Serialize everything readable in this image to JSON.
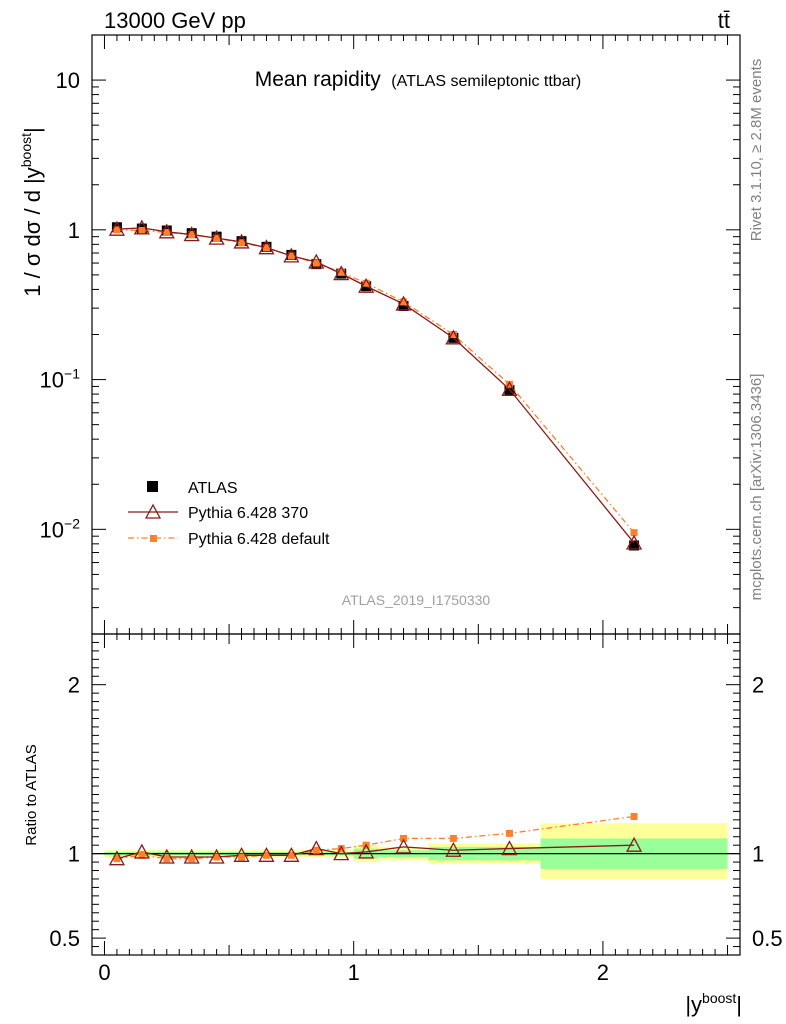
{
  "header": {
    "energy_label": "13000 GeV pp",
    "process_label": "tt̄"
  },
  "main_plot": {
    "title": "Mean rapidity",
    "subtitle": "(ATLAS semileptonic ttbar)",
    "ylabel": "1 / σ dσ / d |y",
    "ylabel_sup": "boost",
    "ylabel_close": "|",
    "y_ticks": [
      {
        "value": 10,
        "base": "10",
        "exp": ""
      },
      {
        "value": 1,
        "base": "1",
        "exp": ""
      },
      {
        "value": 0.1,
        "base": "10",
        "exp": "−1"
      },
      {
        "value": 0.01,
        "base": "10",
        "exp": "−2"
      }
    ],
    "analysis_label": "ATLAS_2019_I1750330"
  },
  "side_labels": {
    "rivet": "Rivet 3.1.10, ≥ 2.8M events",
    "mcplots": "mcplots.cern.ch [arXiv:1306.3436]"
  },
  "legend": {
    "entries": [
      "ATLAS",
      "Pythia 6.428 370",
      "Pythia 6.428 default"
    ]
  },
  "ratio_plot": {
    "ylabel": "Ratio to ATLAS",
    "y_ticks": [
      {
        "value": 2,
        "label": "2"
      },
      {
        "value": 1,
        "label": "1"
      },
      {
        "value": 0.5,
        "label": "0.5"
      }
    ]
  },
  "x_axis": {
    "label_base": "|y",
    "label_sup": "boost",
    "label_close": "|",
    "ticks": [
      {
        "value": 0,
        "label": "0"
      },
      {
        "value": 1,
        "label": "1"
      },
      {
        "value": 2,
        "label": "2"
      }
    ]
  },
  "colors": {
    "data": "#000000",
    "pythia370": "#8b1a1a",
    "pythia_default": "#ff7f2a",
    "band_inner": "#99ff99",
    "band_outer": "#ffff99"
  },
  "chart_data": {
    "type": "scatter",
    "x_scale": "linear",
    "y_scale": "log",
    "xlim": [
      -0.05,
      2.55
    ],
    "ylim": [
      0.002,
      20
    ],
    "ratio_ylim": [
      0.4,
      2.3
    ],
    "bin_edges": [
      0,
      0.1,
      0.2,
      0.3,
      0.4,
      0.5,
      0.6,
      0.7,
      0.8,
      0.9,
      1.0,
      1.1,
      1.3,
      1.5,
      1.75,
      2.5
    ],
    "x": [
      0.05,
      0.15,
      0.25,
      0.35,
      0.45,
      0.55,
      0.65,
      0.75,
      0.85,
      0.95,
      1.05,
      1.2,
      1.4,
      1.625,
      2.125
    ],
    "series": [
      {
        "name": "ATLAS",
        "values": [
          1.04,
          1.02,
          0.99,
          0.95,
          0.9,
          0.84,
          0.77,
          0.68,
          0.59,
          0.51,
          0.42,
          0.31,
          0.19,
          0.085,
          0.0078
        ],
        "ratio": [
          1,
          1,
          1,
          1,
          1,
          1,
          1,
          1,
          1,
          1,
          1,
          1,
          1,
          1,
          1
        ]
      },
      {
        "name": "Pythia 6.428 370",
        "values": [
          1.01,
          1.03,
          0.97,
          0.93,
          0.88,
          0.83,
          0.76,
          0.67,
          0.61,
          0.51,
          0.42,
          0.32,
          0.19,
          0.086,
          0.0081
        ],
        "ratio": [
          0.97,
          1.01,
          0.98,
          0.98,
          0.98,
          0.99,
          0.99,
          0.99,
          1.03,
          1.0,
          1.01,
          1.04,
          1.02,
          1.03,
          1.05
        ]
      },
      {
        "name": "Pythia 6.428 default",
        "values": [
          1.0,
          0.99,
          0.96,
          0.93,
          0.88,
          0.82,
          0.76,
          0.67,
          0.6,
          0.52,
          0.44,
          0.33,
          0.2,
          0.093,
          0.0095
        ],
        "ratio": [
          0.97,
          0.99,
          0.97,
          0.97,
          0.98,
          0.98,
          0.99,
          0.99,
          1.02,
          1.03,
          1.05,
          1.09,
          1.09,
          1.12,
          1.22
        ]
      }
    ],
    "uncertainty_band": {
      "inner_low": [
        0.99,
        0.99,
        0.99,
        0.99,
        0.99,
        0.99,
        0.99,
        0.99,
        0.99,
        0.99,
        0.97,
        0.98,
        0.96,
        0.96,
        0.91
      ],
      "inner_high": [
        1.01,
        1.01,
        1.01,
        1.01,
        1.01,
        1.01,
        1.01,
        1.01,
        1.01,
        1.01,
        1.03,
        1.02,
        1.04,
        1.04,
        1.09
      ],
      "outer_low": [
        0.98,
        0.98,
        0.98,
        0.98,
        0.98,
        0.98,
        0.98,
        0.98,
        0.98,
        0.98,
        0.95,
        0.96,
        0.94,
        0.94,
        0.85
      ],
      "outer_high": [
        1.02,
        1.02,
        1.02,
        1.02,
        1.02,
        1.02,
        1.02,
        1.02,
        1.02,
        1.02,
        1.05,
        1.04,
        1.06,
        1.06,
        1.18
      ]
    }
  }
}
